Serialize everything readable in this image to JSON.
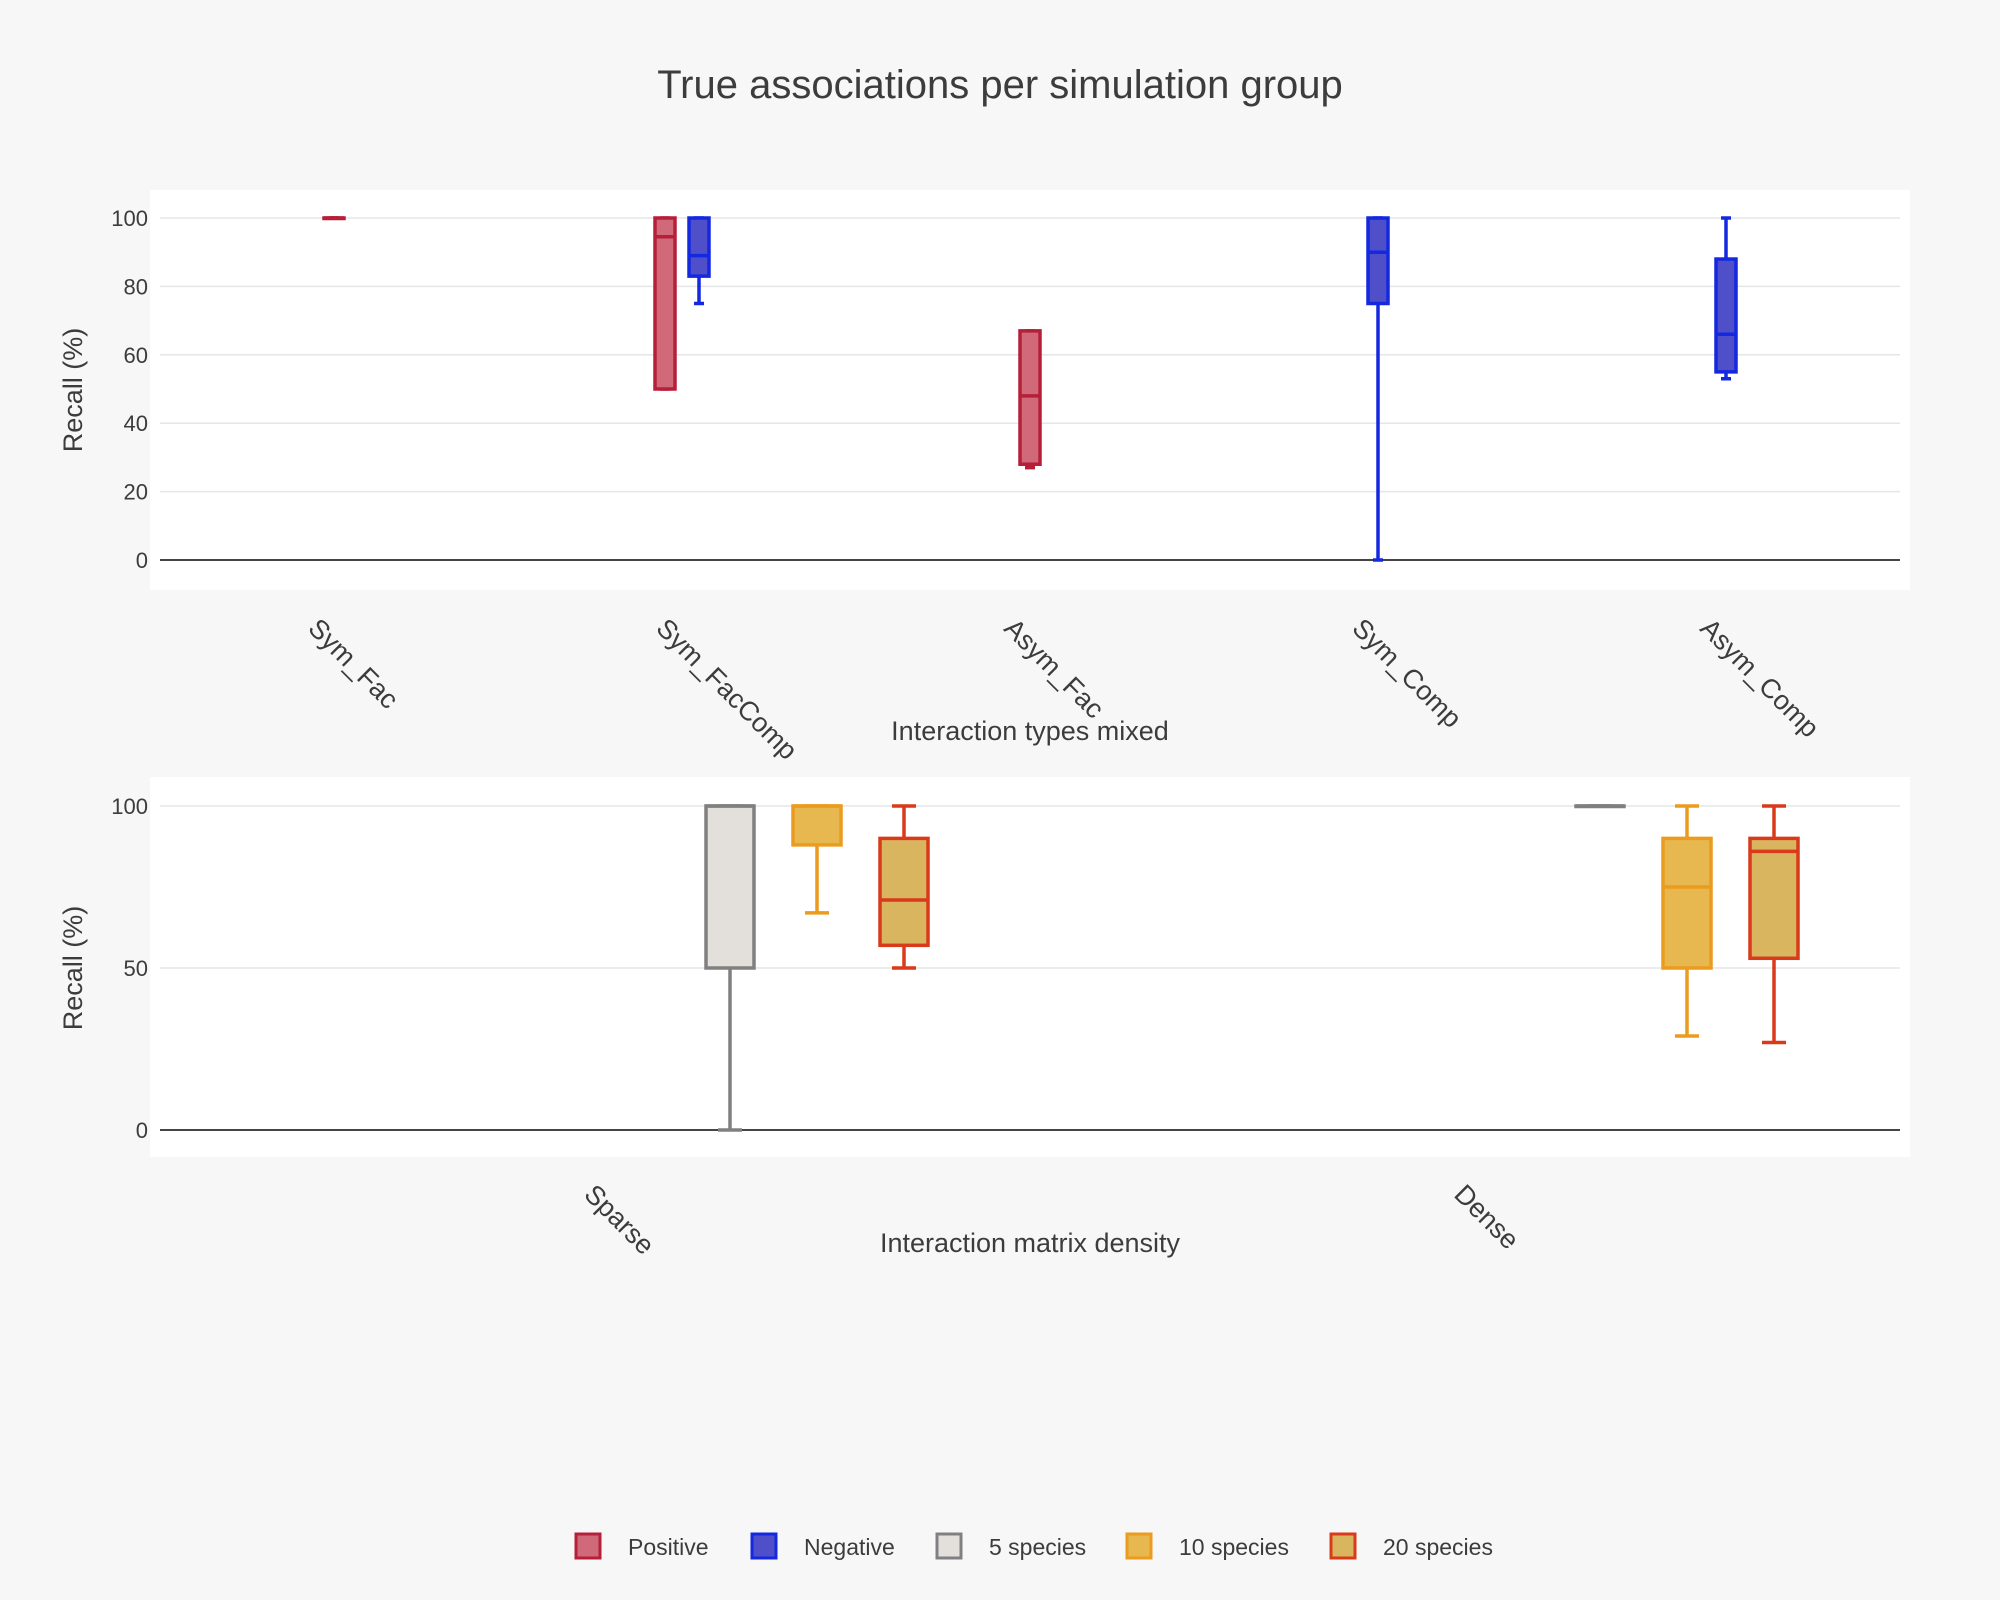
{
  "chart_data": {
    "type": "box",
    "title": "True associations per simulation group",
    "legend": {
      "placement": "bottom-center",
      "items": [
        {
          "label": "Positive",
          "fill": "#d06a7a",
          "stroke": "#b51f37"
        },
        {
          "label": "Negative",
          "fill": "#4f4fc9",
          "stroke": "#1428e0"
        },
        {
          "label": "5 species",
          "fill": "#e3dfdb",
          "stroke": "#808080"
        },
        {
          "label": "10 species",
          "fill": "#e6b84f",
          "stroke": "#eb9c1e"
        },
        {
          "label": "20 species",
          "fill": "#d9b55f",
          "stroke": "#d93a1a"
        }
      ]
    },
    "panels": [
      {
        "xlabel": "Interaction types mixed",
        "ylabel": "Recall (%)",
        "ylim": [
          0,
          108
        ],
        "yticks": [
          0,
          20,
          40,
          60,
          80,
          100
        ],
        "grid": true,
        "categories": [
          "Sym_Fac",
          "Sym_FacComp",
          "Asym_Fac",
          "Sym_Comp",
          "Asym_Comp"
        ],
        "series": [
          {
            "name": "Positive",
            "boxes": [
              {
                "category": "Sym_Fac",
                "min": 100,
                "q1": 100,
                "median": 100,
                "q3": 100,
                "max": 100
              },
              {
                "category": "Sym_FacComp",
                "min": 50,
                "q1": 50,
                "median": 94.5,
                "q3": 100,
                "max": 100
              },
              {
                "category": "Asym_Fac",
                "min": 27,
                "q1": 28,
                "median": 48,
                "q3": 67,
                "max": 67
              }
            ]
          },
          {
            "name": "Negative",
            "boxes": [
              {
                "category": "Sym_FacComp",
                "min": 75,
                "q1": 83,
                "median": 89,
                "q3": 100,
                "max": 100
              },
              {
                "category": "Sym_Comp",
                "min": 0,
                "q1": 75,
                "median": 90,
                "q3": 100,
                "max": 100
              },
              {
                "category": "Asym_Comp",
                "min": 53,
                "q1": 55,
                "median": 66,
                "q3": 88,
                "max": 100
              }
            ]
          }
        ]
      },
      {
        "xlabel": "Interaction matrix density",
        "ylabel": "Recall (%)",
        "ylim": [
          0,
          100
        ],
        "yticks": [
          0,
          50,
          100
        ],
        "grid": true,
        "categories": [
          "Sparse",
          "Dense"
        ],
        "series": [
          {
            "name": "5 species",
            "boxes": [
              {
                "category": "Sparse",
                "min": 0,
                "q1": 50,
                "median": 100,
                "q3": 100,
                "max": 100
              },
              {
                "category": "Dense",
                "min": 100,
                "q1": 100,
                "median": 100,
                "q3": 100,
                "max": 100
              }
            ]
          },
          {
            "name": "10 species",
            "boxes": [
              {
                "category": "Sparse",
                "min": 67,
                "q1": 88,
                "median": 100,
                "q3": 100,
                "max": 100
              },
              {
                "category": "Dense",
                "min": 29,
                "q1": 50,
                "median": 75,
                "q3": 90,
                "max": 100
              }
            ]
          },
          {
            "name": "20 species",
            "boxes": [
              {
                "category": "Sparse",
                "min": 50,
                "q1": 57,
                "median": 71,
                "q3": 90,
                "max": 100
              },
              {
                "category": "Dense",
                "min": 27,
                "q1": 53,
                "median": 86,
                "q3": 90,
                "max": 100
              }
            ]
          }
        ]
      }
    ]
  }
}
